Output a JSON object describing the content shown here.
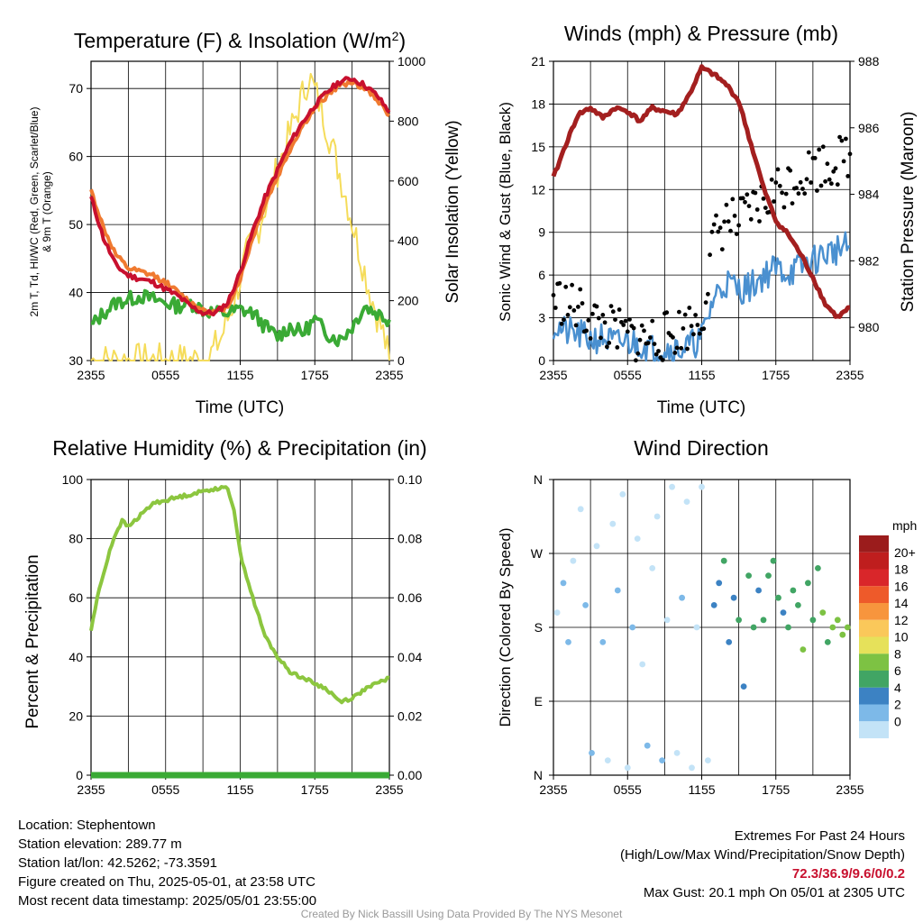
{
  "panels": {
    "temperature": {
      "title": "Temperature (F) & Insolation (W/m²)",
      "title_main": "Temperature (F) & Insolation (W/m",
      "title_sup": "2",
      "title_end": ")",
      "ylabel_left_line1": "2m T, Td, HI/WC (Red, Green, Scarlet/Blue)",
      "ylabel_left_line2": "& 9m T (Orange)",
      "ylabel_right": "Solar Insolation (Yellow)",
      "xlabel": "Time (UTC)",
      "x_ticks": [
        "2355",
        "0555",
        "1155",
        "1755",
        "2355"
      ],
      "y_left_ticks": [
        "30",
        "40",
        "50",
        "60",
        "70"
      ],
      "y_right_ticks": [
        "0",
        "200",
        "400",
        "600",
        "800",
        "1000"
      ]
    },
    "winds": {
      "title": "Winds (mph) & Pressure (mb)",
      "ylabel_left": "Sonic Wind & Gust (Blue, Black)",
      "ylabel_right": "Station Pressure (Maroon)",
      "xlabel": "Time (UTC)",
      "x_ticks": [
        "2355",
        "0555",
        "1155",
        "1755",
        "2355"
      ],
      "y_left_ticks": [
        "0",
        "3",
        "6",
        "9",
        "12",
        "15",
        "18",
        "21"
      ],
      "y_right_ticks": [
        "980",
        "982",
        "984",
        "986",
        "988"
      ]
    },
    "humidity": {
      "title": "Relative Humidity (%) & Precipitation (in)",
      "ylabel_left": "Percent & Precipitation",
      "x_ticks": [
        "2355",
        "0555",
        "1155",
        "1755",
        "2355"
      ],
      "y_left_ticks": [
        "0",
        "20",
        "40",
        "60",
        "80",
        "100"
      ],
      "y_right_ticks": [
        "0.00",
        "0.02",
        "0.04",
        "0.06",
        "0.08",
        "0.10"
      ]
    },
    "direction": {
      "title": "Wind Direction",
      "ylabel_left": "Direction (Colored By Speed)",
      "x_ticks": [
        "2355",
        "0555",
        "1155",
        "1755",
        "2355"
      ],
      "y_ticks": [
        "N",
        "E",
        "S",
        "W",
        "N"
      ],
      "colorbar_title": "mph",
      "colorbar_labels": [
        "20+",
        "18",
        "16",
        "14",
        "12",
        "10",
        "8",
        "6",
        "4",
        "2",
        "0"
      ],
      "colorbar_colors": [
        "#9b1c1c",
        "#bf1e1e",
        "#d9262a",
        "#ee5a2a",
        "#f7953d",
        "#fac85a",
        "#e6e15a",
        "#7dc243",
        "#41a564",
        "#3c82c3",
        "#7db9e8",
        "#c3e3f7"
      ]
    }
  },
  "info": {
    "location": "Location: Stephentown",
    "elevation": "Station elevation: 289.77 m",
    "latlon": "Station lat/lon: 42.5262; -73.3591",
    "created": "Figure created on Thu, 2025-05-01, at 23:58 UTC",
    "recent": "Most recent data timestamp: 2025/05/01 23:55:00",
    "extremes_title": "Extremes For Past 24 Hours",
    "extremes_subtitle": "(High/Low/Max Wind/Precipitation/Snow Depth)",
    "extremes_values": "72.3/36.9/9.6/0/0.2",
    "max_gust": "Max Gust: 20.1 mph On 05/01 at 2305 UTC",
    "credit": "Created By Nick Bassill Using Data Provided By The NYS Mesonet"
  },
  "chart_data": [
    {
      "type": "line",
      "panel": "temperature",
      "x_unit": "hours since 2355 UTC",
      "xlim": [
        0,
        24
      ],
      "ylim_left": [
        30,
        74
      ],
      "ylim_right": [
        0,
        1000
      ],
      "series": [
        {
          "name": "2m T",
          "color": "#c8102e",
          "axis": "left",
          "x": [
            0,
            1,
            2,
            3,
            4,
            5,
            6,
            7,
            8,
            9,
            10,
            11,
            12,
            13,
            14,
            15,
            16,
            17,
            18,
            19,
            20,
            21,
            22,
            23,
            24
          ],
          "values": [
            54,
            48,
            44,
            42.5,
            42,
            41.5,
            40.5,
            39.5,
            38,
            37,
            37,
            38.5,
            43,
            49,
            54,
            58,
            62,
            65,
            67.5,
            69.5,
            71,
            71.5,
            70.5,
            69,
            66.5
          ]
        },
        {
          "name": "9m T",
          "color": "#f07a30",
          "axis": "left",
          "x": [
            0,
            1,
            2,
            3,
            4,
            5,
            6,
            7,
            8,
            9,
            10,
            11,
            12,
            13,
            14,
            15,
            16,
            17,
            18,
            19,
            20,
            21,
            22,
            23,
            24
          ],
          "values": [
            55,
            49.5,
            45.5,
            43.5,
            43,
            42.5,
            41.5,
            40,
            38.5,
            37.5,
            37,
            38,
            42,
            48,
            53,
            57,
            61,
            64.5,
            67,
            69,
            70.5,
            71,
            70,
            68.5,
            66
          ]
        },
        {
          "name": "Td",
          "color": "#3aaa35",
          "axis": "left",
          "x": [
            0,
            1,
            2,
            3,
            4,
            5,
            6,
            7,
            8,
            9,
            10,
            11,
            12,
            13,
            14,
            15,
            16,
            17,
            18,
            19,
            20,
            21,
            22,
            23,
            24
          ],
          "values": [
            35,
            37,
            38.5,
            39,
            39.5,
            39,
            38.5,
            38,
            38.5,
            37.5,
            37,
            37,
            37.5,
            37,
            35,
            33.5,
            35,
            34,
            36,
            34,
            33,
            35,
            38,
            37,
            36
          ]
        },
        {
          "name": "Solar Insolation",
          "color": "#f5dc5a",
          "axis": "right",
          "x": [
            0,
            2,
            4,
            6,
            8,
            9.5,
            10.5,
            11.5,
            12.5,
            13.5,
            14.5,
            15.5,
            16.5,
            17.5,
            18.5,
            19.5,
            20.5,
            21.5,
            22.5,
            23.5,
            24
          ],
          "values": [
            0,
            0,
            0,
            0,
            0,
            10,
            80,
            200,
            350,
            450,
            580,
            700,
            820,
            950,
            850,
            700,
            550,
            380,
            220,
            90,
            0
          ]
        }
      ]
    },
    {
      "type": "line",
      "panel": "winds",
      "x_unit": "hours since 2355 UTC",
      "xlim": [
        0,
        24
      ],
      "ylim_left": [
        0,
        21
      ],
      "ylim_right": [
        979,
        988
      ],
      "series": [
        {
          "name": "Station Pressure",
          "color": "#a31f1f",
          "axis": "right",
          "x": [
            0,
            1,
            2,
            3,
            4,
            5,
            6,
            7,
            8,
            9,
            10,
            11,
            12,
            13,
            14,
            15,
            16,
            17,
            18,
            19,
            20,
            21,
            22,
            23,
            24
          ],
          "values": [
            984.5,
            985.5,
            986.4,
            986.6,
            986.3,
            986.6,
            986.5,
            986.2,
            986.6,
            986.5,
            986.4,
            987,
            987.8,
            987.6,
            987.3,
            986.8,
            985.5,
            984.2,
            983.2,
            982.8,
            982.2,
            981.5,
            980.7,
            980.3,
            980.6
          ]
        },
        {
          "name": "Sonic Wind",
          "color": "#4a90d0",
          "axis": "left",
          "x": [
            0,
            1,
            2,
            3,
            4,
            5,
            6,
            7,
            8,
            9,
            10,
            11,
            12,
            13,
            14,
            15,
            16,
            17,
            18,
            19,
            20,
            21,
            22,
            23,
            24
          ],
          "values": [
            2.5,
            2,
            1.8,
            1.5,
            1.6,
            1.2,
            1.3,
            1.2,
            0.8,
            0.9,
            0.8,
            1,
            1.6,
            4.5,
            5.5,
            5,
            5.2,
            6,
            6.5,
            6.2,
            6.5,
            7,
            7.5,
            7.8,
            8
          ]
        },
        {
          "name": "Gust",
          "color": "#000000",
          "axis": "left",
          "x": [
            0,
            1,
            2,
            3,
            4,
            5,
            6,
            7,
            8,
            9,
            10,
            11,
            12,
            13,
            14,
            15,
            16,
            17,
            18,
            19,
            20,
            21,
            22,
            23,
            24
          ],
          "values": [
            4.5,
            4,
            3.5,
            3,
            2.5,
            2,
            1.8,
            1.5,
            1.6,
            1.7,
            2,
            2.5,
            3,
            8.5,
            10,
            9.5,
            10.5,
            11,
            12,
            12.5,
            13,
            13.5,
            13.8,
            14,
            14.5
          ]
        }
      ]
    },
    {
      "type": "line",
      "panel": "humidity",
      "x_unit": "hours since 2355 UTC",
      "xlim": [
        0,
        24
      ],
      "ylim_left": [
        0,
        100
      ],
      "ylim_right": [
        0,
        0.1
      ],
      "series": [
        {
          "name": "Relative Humidity",
          "color": "#8cc63f",
          "axis": "left",
          "x": [
            0,
            0.5,
            1,
            1.5,
            2,
            2.5,
            3,
            4,
            5,
            6,
            7,
            8,
            9,
            10,
            11,
            11.5,
            12,
            13,
            14,
            15,
            16,
            17,
            18,
            19,
            20,
            21,
            22,
            23,
            24
          ],
          "values": [
            49,
            60,
            68,
            76,
            82,
            86,
            84,
            88,
            92,
            93,
            94,
            95,
            96,
            97,
            97,
            90,
            75,
            60,
            47,
            40,
            35,
            33,
            31,
            29,
            25,
            26,
            29,
            31,
            33
          ]
        },
        {
          "name": "Precipitation",
          "color": "#3aaa35",
          "axis": "right",
          "x": [
            0,
            24
          ],
          "values": [
            0,
            0
          ]
        }
      ]
    },
    {
      "type": "scatter",
      "panel": "direction",
      "x_unit": "hours since 2355 UTC",
      "xlim": [
        0,
        24
      ],
      "y_unit": "compass direction (N, E, S, W, N)",
      "ylim": [
        0,
        4
      ],
      "points": [
        {
          "x": 0.3,
          "y": 2.2,
          "speed": 1
        },
        {
          "x": 0.8,
          "y": 2.6,
          "speed": 2
        },
        {
          "x": 1.2,
          "y": 1.8,
          "speed": 3
        },
        {
          "x": 1.6,
          "y": 2.9,
          "speed": 1
        },
        {
          "x": 2.2,
          "y": 3.6,
          "speed": 0
        },
        {
          "x": 2.6,
          "y": 2.3,
          "speed": 2
        },
        {
          "x": 3.1,
          "y": 0.3,
          "speed": 3
        },
        {
          "x": 3.5,
          "y": 3.1,
          "speed": 1
        },
        {
          "x": 4.0,
          "y": 1.8,
          "speed": 2
        },
        {
          "x": 4.4,
          "y": 0.2,
          "speed": 0
        },
        {
          "x": 4.8,
          "y": 3.4,
          "speed": 1
        },
        {
          "x": 5.2,
          "y": 2.5,
          "speed": 2
        },
        {
          "x": 5.6,
          "y": 3.8,
          "speed": 0
        },
        {
          "x": 6.0,
          "y": 0.1,
          "speed": 1
        },
        {
          "x": 6.4,
          "y": 2.0,
          "speed": 2
        },
        {
          "x": 6.8,
          "y": 3.2,
          "speed": 1
        },
        {
          "x": 7.2,
          "y": 1.5,
          "speed": 0
        },
        {
          "x": 7.6,
          "y": 0.4,
          "speed": 3
        },
        {
          "x": 8.0,
          "y": 2.8,
          "speed": 1
        },
        {
          "x": 8.4,
          "y": 3.5,
          "speed": 0
        },
        {
          "x": 8.8,
          "y": 0.2,
          "speed": 2
        },
        {
          "x": 9.2,
          "y": 2.1,
          "speed": 1
        },
        {
          "x": 9.6,
          "y": 3.9,
          "speed": 0
        },
        {
          "x": 10.0,
          "y": 0.3,
          "speed": 1
        },
        {
          "x": 10.4,
          "y": 2.4,
          "speed": 2
        },
        {
          "x": 10.8,
          "y": 3.7,
          "speed": 0
        },
        {
          "x": 11.2,
          "y": 0.1,
          "speed": 1
        },
        {
          "x": 11.6,
          "y": 2.0,
          "speed": 0
        },
        {
          "x": 12.0,
          "y": 3.9,
          "speed": 0
        },
        {
          "x": 12.5,
          "y": 0.2,
          "speed": 1
        },
        {
          "x": 13.0,
          "y": 2.3,
          "speed": 4
        },
        {
          "x": 13.4,
          "y": 2.6,
          "speed": 5
        },
        {
          "x": 13.8,
          "y": 2.9,
          "speed": 6
        },
        {
          "x": 14.2,
          "y": 1.8,
          "speed": 4
        },
        {
          "x": 14.6,
          "y": 2.4,
          "speed": 5
        },
        {
          "x": 15.0,
          "y": 2.1,
          "speed": 6
        },
        {
          "x": 15.4,
          "y": 1.2,
          "speed": 4
        },
        {
          "x": 15.8,
          "y": 2.7,
          "speed": 6
        },
        {
          "x": 16.2,
          "y": 2.0,
          "speed": 7
        },
        {
          "x": 16.6,
          "y": 2.5,
          "speed": 5
        },
        {
          "x": 17.0,
          "y": 2.1,
          "speed": 6
        },
        {
          "x": 17.4,
          "y": 2.7,
          "speed": 7
        },
        {
          "x": 17.8,
          "y": 2.9,
          "speed": 6
        },
        {
          "x": 18.2,
          "y": 2.4,
          "speed": 7
        },
        {
          "x": 18.6,
          "y": 2.2,
          "speed": 5
        },
        {
          "x": 19.0,
          "y": 2.0,
          "speed": 6
        },
        {
          "x": 19.4,
          "y": 2.5,
          "speed": 7
        },
        {
          "x": 19.8,
          "y": 2.3,
          "speed": 6
        },
        {
          "x": 20.2,
          "y": 1.7,
          "speed": 8
        },
        {
          "x": 20.6,
          "y": 2.6,
          "speed": 6
        },
        {
          "x": 21.0,
          "y": 2.1,
          "speed": 7
        },
        {
          "x": 21.4,
          "y": 2.8,
          "speed": 6
        },
        {
          "x": 21.8,
          "y": 2.2,
          "speed": 8
        },
        {
          "x": 22.2,
          "y": 1.8,
          "speed": 7
        },
        {
          "x": 22.6,
          "y": 2.0,
          "speed": 8
        },
        {
          "x": 23.0,
          "y": 2.1,
          "speed": 9
        },
        {
          "x": 23.4,
          "y": 1.9,
          "speed": 8
        },
        {
          "x": 23.8,
          "y": 2.0,
          "speed": 9
        }
      ]
    }
  ]
}
